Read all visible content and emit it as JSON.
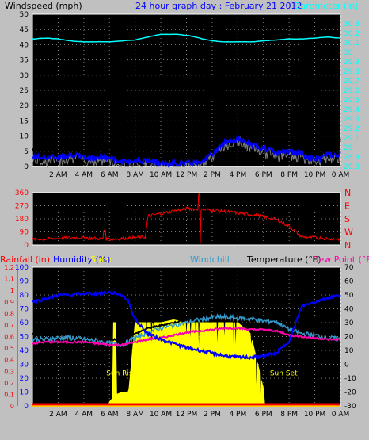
{
  "chart_data": [
    {
      "type": "line",
      "title": "24 hour graph day : February 21 2012",
      "ylabel_left": "Windspeed (mph)",
      "ylabel_right": "Barometer (in)",
      "ylim_left": [
        0,
        50
      ],
      "yticks_left": [
        "0",
        "5",
        "10",
        "15",
        "20",
        "25",
        "30",
        "35",
        "40",
        "45",
        "50"
      ],
      "ylim_right": [
        28.8,
        30.4
      ],
      "yticks_right": [
        "28.8",
        "28.9",
        "29",
        "29.1",
        "29.2",
        "29.3",
        "29.4",
        "29.5",
        "29.6",
        "29.7",
        "29.8",
        "29.9",
        "30",
        "30.1",
        "30.2",
        "30.3"
      ],
      "x_tick_labels": [
        "2 AM",
        "4 AM",
        "6 AM",
        "8 AM",
        "10 AM",
        "12 PM",
        "2 PM",
        "4 PM",
        "6 PM",
        "8 PM",
        "10 PM",
        "0 AM"
      ],
      "xlim_hours": [
        0,
        24
      ],
      "grid": true,
      "colors": {
        "gust": "#000000",
        "average": "#0000ff",
        "direction_avg": "#808080",
        "barometer": "#00ffff"
      },
      "series": [
        {
          "key": "barometer",
          "x": [
            0,
            1,
            2,
            3,
            4,
            5,
            6,
            7,
            8,
            9,
            10,
            11,
            12,
            13,
            14,
            15,
            16,
            17,
            18,
            19,
            20,
            21,
            22,
            23,
            24
          ],
          "values": [
            30.14,
            30.15,
            30.14,
            30.12,
            30.11,
            30.11,
            30.11,
            30.12,
            30.13,
            30.16,
            30.19,
            30.19,
            30.18,
            30.15,
            30.12,
            30.11,
            30.11,
            30.11,
            30.12,
            30.13,
            30.14,
            30.14,
            30.15,
            30.16,
            30.15
          ]
        },
        {
          "key": "gust",
          "x": [
            0,
            1,
            2,
            3,
            4,
            5,
            6,
            7,
            8,
            9,
            10,
            11,
            12,
            13,
            14,
            15,
            16,
            17,
            18,
            19,
            20,
            21,
            22,
            23,
            24
          ],
          "values": [
            6,
            7,
            6,
            9,
            5,
            6,
            6,
            3,
            4,
            4,
            3,
            3,
            3,
            3,
            6,
            12,
            13,
            11,
            10,
            7,
            8,
            7,
            4,
            7,
            7
          ]
        },
        {
          "key": "average",
          "x": [
            0,
            1,
            2,
            3,
            4,
            5,
            6,
            7,
            8,
            9,
            10,
            11,
            12,
            13,
            14,
            15,
            16,
            17,
            18,
            19,
            20,
            21,
            22,
            23,
            24
          ],
          "values": [
            3,
            3,
            3,
            4,
            3,
            3,
            3,
            1.5,
            2,
            2,
            1,
            1,
            1,
            1.5,
            4,
            8,
            9,
            7,
            6,
            4.5,
            5,
            4,
            2,
            4,
            4
          ]
        }
      ]
    },
    {
      "type": "scatter",
      "ylim": [
        0,
        360
      ],
      "yticks": [
        "0",
        "90",
        "180",
        "270",
        "360"
      ],
      "direction_labels": [
        "N",
        "W",
        "S",
        "E",
        "N"
      ],
      "color": "#ff0000",
      "x": [
        0,
        1,
        2,
        3,
        4,
        5,
        6,
        7,
        8,
        8.8,
        9,
        10,
        11,
        12,
        13,
        14,
        15,
        16,
        17,
        18,
        19,
        20,
        21,
        22,
        23,
        24
      ],
      "values": [
        40,
        40,
        45,
        50,
        50,
        45,
        40,
        45,
        50,
        55,
        200,
        215,
        235,
        250,
        245,
        240,
        230,
        220,
        210,
        195,
        175,
        130,
        55,
        50,
        45,
        40
      ]
    },
    {
      "type": "line",
      "labels": {
        "rainfall": "Rainfall (in)",
        "humidity": "Humidity (%)",
        "solar": "Solar",
        "windchill": "Windchill",
        "temperature": "Temperature (°F)",
        "dew_point": "Dew Point (°F)"
      },
      "annotations": {
        "sunrise": "Sun Rise",
        "sunset": "Sun Set"
      },
      "rain_ylim": [
        0,
        1.2
      ],
      "rain_yticks": [
        "0",
        "0.1",
        "0.2",
        "0.3",
        "0.4",
        "0.5",
        "0.6",
        "0.7",
        "0.8",
        "0.9",
        "1",
        "1.1",
        "1.2"
      ],
      "humidity_ylim": [
        0,
        100
      ],
      "humidity_yticks": [
        "0",
        "10",
        "20",
        "30",
        "40",
        "50",
        "60",
        "70",
        "80",
        "90",
        "100"
      ],
      "temp_ylim": [
        -30,
        70
      ],
      "temp_yticks": [
        "-30",
        "-20",
        "-10",
        "0",
        "10",
        "20",
        "30",
        "40",
        "50",
        "60",
        "70"
      ],
      "colors": {
        "rainfall": "#ff0000",
        "humidity": "#0000ff",
        "solar": "#ffff00",
        "windchill": "#3399cc",
        "temperature": "#000000",
        "dew_point": "#ff00aa"
      },
      "series": [
        {
          "key": "humidity",
          "x": [
            0,
            1,
            2,
            3,
            4,
            5,
            6,
            7,
            7.5,
            8,
            9,
            10,
            11,
            12,
            13,
            14,
            15,
            16,
            17,
            18,
            19,
            20,
            21,
            22,
            23,
            24
          ],
          "values": [
            75,
            77,
            80,
            80,
            81,
            81,
            82,
            80,
            75,
            62,
            52,
            48,
            45,
            42,
            40,
            38,
            36,
            35,
            35,
            36,
            38,
            47,
            72,
            75,
            78,
            80
          ]
        },
        {
          "key": "temperature",
          "x": [
            0,
            1,
            2,
            3,
            4,
            5,
            6,
            7,
            8,
            9,
            10,
            11,
            12,
            13,
            14,
            15,
            16,
            17,
            18,
            19,
            20,
            21,
            22,
            23,
            24
          ],
          "values": [
            22,
            21,
            22,
            22,
            21,
            20,
            18,
            18,
            22,
            26,
            28,
            30,
            32,
            35,
            37,
            38,
            38,
            37,
            34,
            32,
            28,
            25,
            24,
            22,
            22
          ]
        },
        {
          "key": "windchill",
          "x": [
            0,
            1,
            2,
            3,
            4,
            5,
            6,
            7,
            8,
            9,
            10,
            11,
            12,
            13,
            14,
            15,
            16,
            17,
            18,
            19,
            20,
            21,
            22,
            23,
            24
          ],
          "values": [
            18,
            18,
            19,
            19,
            18,
            17,
            15,
            14,
            19,
            23,
            26,
            28,
            30,
            32,
            34,
            34,
            33,
            33,
            31,
            31,
            25,
            22,
            21,
            19,
            18
          ]
        },
        {
          "key": "dew_point",
          "x": [
            0,
            1,
            2,
            3,
            4,
            5,
            6,
            7,
            8,
            9,
            10,
            11,
            12,
            13,
            14,
            15,
            16,
            17,
            18,
            19,
            20,
            21,
            22,
            23,
            24
          ],
          "values": [
            15,
            16,
            16,
            16,
            16,
            15,
            14,
            14,
            16,
            18,
            19,
            21,
            23,
            24,
            25,
            26,
            26,
            25,
            25,
            24,
            21,
            20,
            19,
            18,
            18
          ]
        },
        {
          "key": "solar_humidity_scale",
          "x": [
            0,
            5.9,
            6,
            6.5,
            7,
            7.5,
            8,
            8.5,
            9,
            10,
            11,
            12,
            13,
            14,
            15,
            16,
            17,
            18,
            18.1,
            24
          ],
          "values": [
            0,
            0,
            3,
            8,
            10,
            10,
            60,
            60,
            60,
            60,
            62,
            60,
            60,
            60,
            60,
            60,
            52,
            12,
            0,
            0
          ]
        },
        {
          "key": "rainfall",
          "x": [
            0,
            24
          ],
          "values": [
            0,
            0
          ]
        }
      ],
      "x_tick_labels": [
        "2 AM",
        "4 AM",
        "6 AM",
        "8 AM",
        "10 AM",
        "12 PM",
        "2 PM",
        "4 PM",
        "6 PM",
        "8 PM",
        "10 PM",
        "0 AM"
      ],
      "grid": true
    }
  ]
}
